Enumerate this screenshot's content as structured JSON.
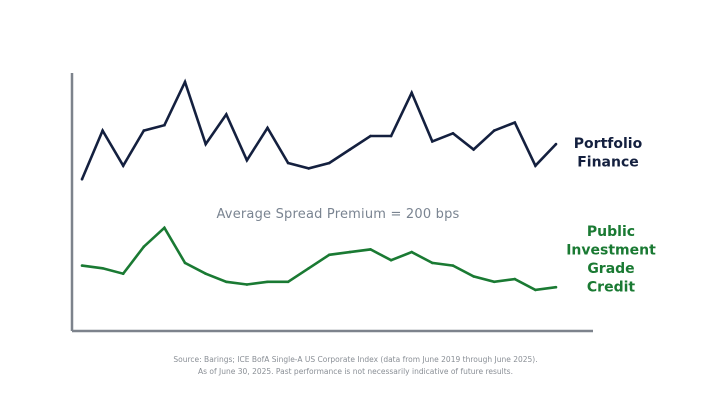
{
  "chart_data": {
    "type": "line",
    "xlim": [
      0,
      23
    ],
    "ylim": [
      0,
      10
    ],
    "axes": {
      "x_ticks": false,
      "y_ticks": false,
      "grid": false
    },
    "annotation": "Average Spread Premium = 200 bps",
    "series": [
      {
        "name": "Portfolio Finance",
        "name_lines": [
          "Portfolio",
          "Finance"
        ],
        "color": "#14203f",
        "x": [
          0,
          1,
          2,
          3,
          4,
          5,
          6,
          7,
          8,
          9,
          10,
          11,
          12,
          13,
          14,
          15,
          16,
          17,
          18,
          19,
          20,
          21,
          22,
          23
        ],
        "values": [
          5.4,
          7.2,
          5.9,
          7.2,
          7.4,
          9.0,
          6.7,
          7.8,
          6.1,
          7.3,
          6.0,
          5.8,
          6.0,
          6.5,
          7.0,
          7.0,
          8.6,
          6.8,
          7.1,
          6.5,
          7.2,
          7.5,
          5.9,
          6.7
        ]
      },
      {
        "name": "Public Investment Grade Credit",
        "name_lines": [
          "Public",
          "Investment",
          "Grade",
          "Credit"
        ],
        "color": "#1a7a33",
        "x": [
          0,
          1,
          2,
          3,
          4,
          5,
          6,
          7,
          8,
          9,
          10,
          11,
          12,
          13,
          14,
          15,
          16,
          17,
          18,
          19,
          20,
          21,
          22,
          23
        ],
        "values": [
          2.2,
          2.1,
          1.9,
          2.9,
          3.6,
          2.3,
          1.9,
          1.6,
          1.5,
          1.6,
          1.6,
          2.1,
          2.6,
          2.7,
          2.8,
          2.4,
          2.7,
          2.3,
          2.2,
          1.8,
          1.6,
          1.7,
          1.3,
          1.4
        ]
      }
    ]
  },
  "footer": {
    "line1": "Source: Barings; ICE BofA Single-A US Corporate Index (data from June 2019 through June 2025).",
    "line2": "As of June 30, 2025. Past performance is not necessarily indicative of future results."
  }
}
